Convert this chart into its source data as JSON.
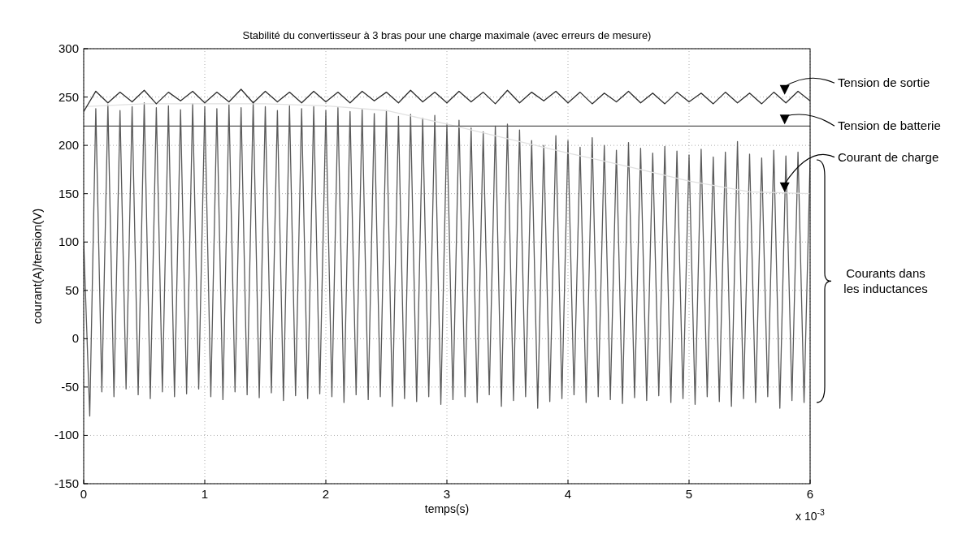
{
  "chart_data": {
    "type": "line",
    "title": "Stabilité du convertisseur à 3 bras pour une charge maximale (avec erreurs de mesure)",
    "xlabel": "temps(s)",
    "ylabel": "courant(A)/tension(V)",
    "xlim": [
      0,
      6
    ],
    "xticks": [
      0,
      1,
      2,
      3,
      4,
      5,
      6
    ],
    "ylim": [
      -150,
      300
    ],
    "yticks": [
      -150,
      -100,
      -50,
      0,
      50,
      100,
      150,
      200,
      250,
      300
    ],
    "grid": true,
    "annotations": [
      "x 10$^{-3}$"
    ],
    "series": [
      {
        "name": "Tension de sortie",
        "color": "#2b2b2b",
        "x": [
          0,
          0.1,
          0.2,
          0.3,
          0.4,
          0.5,
          0.6,
          0.7,
          0.8,
          0.9,
          1,
          1.1,
          1.2,
          1.3,
          1.4,
          1.5,
          1.6,
          1.7,
          1.8,
          1.9,
          2,
          2.1,
          2.2,
          2.3,
          2.4,
          2.5,
          2.6,
          2.7,
          2.8,
          2.9,
          3,
          3.1,
          3.2,
          3.3,
          3.4,
          3.5,
          3.6,
          3.7,
          3.8,
          3.9,
          4,
          4.1,
          4.2,
          4.3,
          4.4,
          4.5,
          4.6,
          4.7,
          4.8,
          4.9,
          5,
          5.1,
          5.2,
          5.3,
          5.4,
          5.5,
          5.6,
          5.7,
          5.8,
          5.9,
          6
        ],
        "values": [
          235,
          256,
          244,
          255,
          245,
          257,
          243,
          255,
          246,
          256,
          244,
          255,
          245,
          258,
          244,
          256,
          245,
          255,
          244,
          256,
          245,
          255,
          244,
          256,
          246,
          255,
          244,
          257,
          245,
          255,
          244,
          256,
          245,
          255,
          243,
          257,
          244,
          255,
          246,
          256,
          244,
          255,
          243,
          254,
          245,
          256,
          244,
          254,
          243,
          255,
          245,
          254,
          243,
          255,
          244,
          254,
          243,
          255,
          244,
          256,
          246
        ]
      },
      {
        "name": "Tension de batterie",
        "color": "#555555",
        "x": [
          0,
          6
        ],
        "values": [
          220,
          220
        ]
      },
      {
        "name": "Courant de charge",
        "color": "#e0e0e0",
        "x": [
          0,
          0.5,
          1,
          1.5,
          2,
          2.5,
          3,
          3.5,
          4,
          4.5,
          5,
          5.5,
          6
        ],
        "values": [
          240,
          243,
          243,
          243,
          241,
          236,
          222,
          207,
          192,
          178,
          163,
          152,
          150
        ]
      },
      {
        "name": "Courants dans les inductances",
        "color": "#5a5a5a",
        "x": [
          0,
          0.05,
          0.1,
          0.15,
          0.2,
          0.25,
          0.3,
          0.35,
          0.4,
          0.45,
          0.5,
          0.55,
          0.6,
          0.65,
          0.7,
          0.75,
          0.8,
          0.85,
          0.9,
          0.95,
          1,
          1.05,
          1.1,
          1.15,
          1.2,
          1.25,
          1.3,
          1.35,
          1.4,
          1.45,
          1.5,
          1.55,
          1.6,
          1.65,
          1.7,
          1.75,
          1.8,
          1.85,
          1.9,
          1.95,
          2,
          2.05,
          2.1,
          2.15,
          2.2,
          2.25,
          2.3,
          2.35,
          2.4,
          2.45,
          2.5,
          2.55,
          2.6,
          2.65,
          2.7,
          2.75,
          2.8,
          2.85,
          2.9,
          2.95,
          3,
          3.05,
          3.1,
          3.15,
          3.2,
          3.25,
          3.3,
          3.35,
          3.4,
          3.45,
          3.5,
          3.55,
          3.6,
          3.65,
          3.7,
          3.75,
          3.8,
          3.85,
          3.9,
          3.95,
          4,
          4.05,
          4.1,
          4.15,
          4.2,
          4.25,
          4.3,
          4.35,
          4.4,
          4.45,
          4.5,
          4.55,
          4.6,
          4.65,
          4.7,
          4.75,
          4.8,
          4.85,
          4.9,
          4.95,
          5,
          5.05,
          5.1,
          5.15,
          5.2,
          5.25,
          5.3,
          5.35,
          5.4,
          5.45,
          5.5,
          5.55,
          5.6,
          5.65,
          5.7,
          5.75,
          5.8,
          5.85,
          5.9,
          5.95,
          6
        ],
        "values": [
          100,
          -80,
          238,
          -55,
          242,
          -60,
          236,
          -52,
          240,
          -58,
          244,
          -62,
          239,
          -55,
          241,
          -60,
          237,
          -57,
          243,
          -52,
          240,
          -60,
          238,
          -63,
          242,
          -55,
          239,
          -58,
          245,
          -61,
          240,
          -56,
          236,
          -64,
          241,
          -59,
          238,
          -62,
          240,
          -57,
          236,
          -60,
          239,
          -66,
          235,
          -58,
          237,
          -63,
          233,
          -60,
          236,
          -70,
          230,
          -62,
          232,
          -65,
          228,
          -60,
          231,
          -68,
          222,
          -63,
          226,
          -60,
          218,
          -66,
          214,
          -58,
          220,
          -70,
          222,
          -64,
          216,
          -60,
          205,
          -72,
          200,
          -65,
          210,
          -62,
          205,
          -58,
          198,
          -66,
          208,
          -60,
          200,
          -63,
          195,
          -67,
          203,
          -61,
          197,
          -64,
          192,
          -59,
          199,
          -66,
          194,
          -62,
          190,
          -68,
          196,
          -60,
          188,
          -65,
          193,
          -70,
          204,
          -62,
          191,
          -66,
          187,
          -60,
          195,
          -72,
          189,
          -64,
          193,
          -66,
          185
        ]
      }
    ]
  }
}
